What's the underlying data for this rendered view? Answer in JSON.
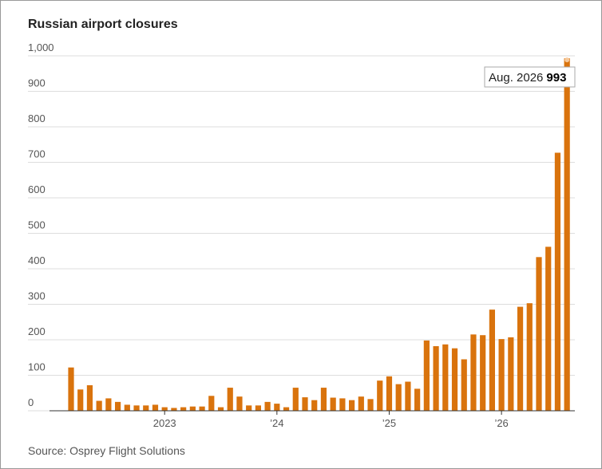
{
  "chart_data": {
    "type": "bar",
    "title": "Russian airport closures",
    "source": "Source: Osprey Flight Solutions",
    "annotation": "Aug. 2026",
    "categories": [
      null,
      null,
      null,
      null,
      null,
      null,
      null,
      null,
      null,
      null,
      "2023",
      null,
      null,
      null,
      null,
      null,
      null,
      null,
      null,
      null,
      null,
      null,
      "’24",
      null,
      null,
      null,
      null,
      null,
      null,
      null,
      null,
      null,
      null,
      null,
      "’25",
      null,
      null,
      null,
      null,
      null,
      null,
      null,
      null,
      null,
      null,
      null,
      "’26",
      null,
      null,
      null,
      null,
      null,
      null,
      null
    ],
    "values": [
      122,
      60,
      72,
      28,
      35,
      25,
      17,
      15,
      15,
      17,
      10,
      8,
      10,
      12,
      12,
      42,
      10,
      65,
      40,
      15,
      15,
      25,
      20,
      10,
      65,
      38,
      30,
      65,
      37,
      35,
      30,
      40,
      33,
      85,
      97,
      75,
      82,
      62,
      198,
      182,
      187,
      176,
      145,
      215,
      213,
      285,
      202,
      207,
      293,
      303,
      433,
      462,
      727,
      993
    ],
    "color": "#d9730d",
    "ylim": [
      0,
      1000
    ],
    "yticks": [
      0,
      100,
      200,
      300,
      400,
      500,
      600,
      700,
      800,
      900,
      {
        "value": 1000,
        "label": "1,000"
      }
    ],
    "grid": true
  }
}
